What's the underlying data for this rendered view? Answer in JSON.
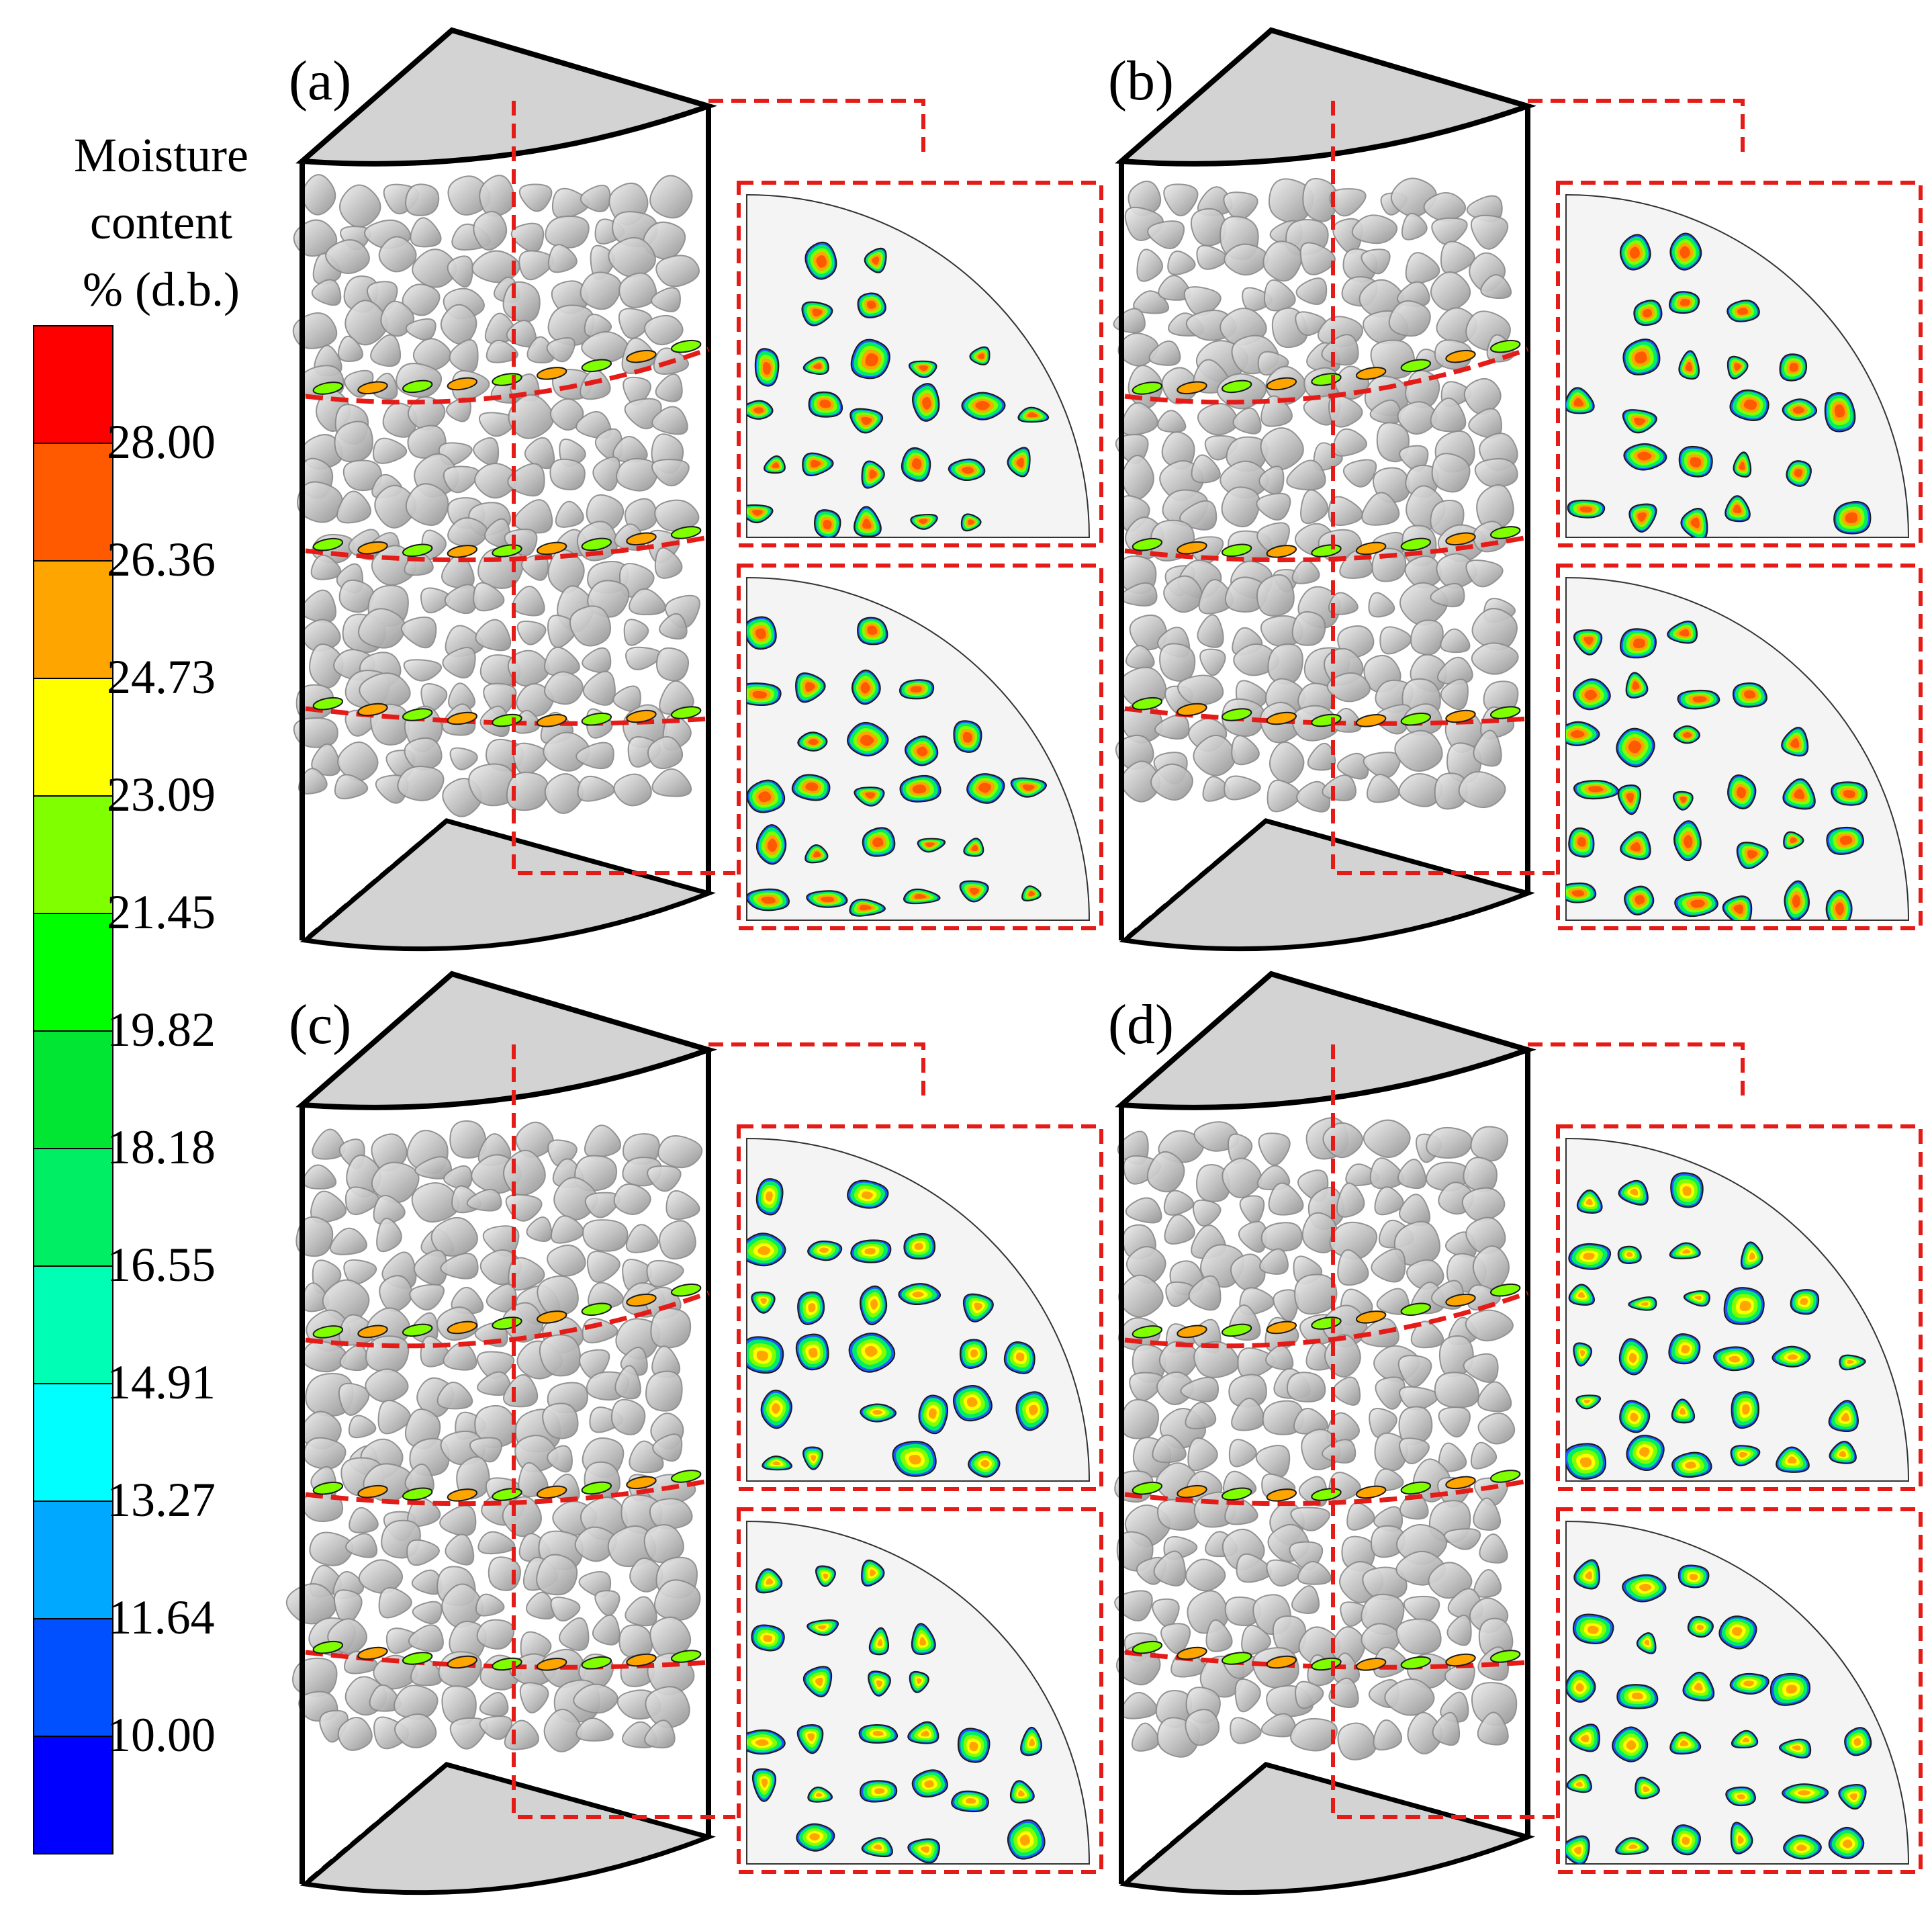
{
  "legend": {
    "title_lines": [
      "Moisture",
      "content",
      "% (d.b.)"
    ],
    "ticks": [
      "28.00",
      "26.36",
      "24.73",
      "23.09",
      "21.45",
      "19.82",
      "18.18",
      "16.55",
      "14.91",
      "13.27",
      "11.64",
      "10.00"
    ],
    "colors": [
      "#ff0000",
      "#ff5a00",
      "#ffa500",
      "#ffff00",
      "#80ff00",
      "#00ff00",
      "#00e632",
      "#00ee64",
      "#00ffb4",
      "#00ffff",
      "#00a8ff",
      "#0050ff",
      "#0000ff"
    ],
    "contour_line_color": "#1a1a1a"
  },
  "panels": [
    {
      "id": "a",
      "label": "(a)",
      "accent_level": "high"
    },
    {
      "id": "b",
      "label": "(b)",
      "accent_level": "high"
    },
    {
      "id": "c",
      "label": "(c)",
      "accent_level": "medium"
    },
    {
      "id": "d",
      "label": "(d)",
      "accent_level": "medium"
    }
  ],
  "colors": {
    "cut_line": "#e41b17",
    "cap_fill": "#d3d3d3",
    "particle_fill": "#c4c4c4",
    "particle_stroke": "#8a8a8a",
    "section_bg": "#f4f4f4"
  }
}
